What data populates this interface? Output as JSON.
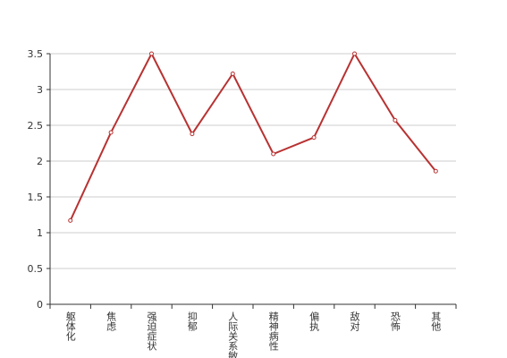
{
  "chart_data": {
    "type": "line",
    "categories": [
      "躯体化",
      "焦虑",
      "强迫症状",
      "抑郁",
      "人际关系敏感",
      "精神病性",
      "偏执",
      "敌对",
      "恐怖",
      "其他"
    ],
    "values": [
      1.17,
      2.4,
      3.5,
      2.38,
      3.22,
      2.1,
      2.33,
      3.5,
      2.57,
      1.86
    ],
    "color": "#b83232",
    "ylim": [
      0,
      3.5
    ],
    "yticks": [
      0,
      0.5,
      1,
      1.5,
      2,
      2.5,
      3,
      3.5
    ],
    "grid": true
  }
}
